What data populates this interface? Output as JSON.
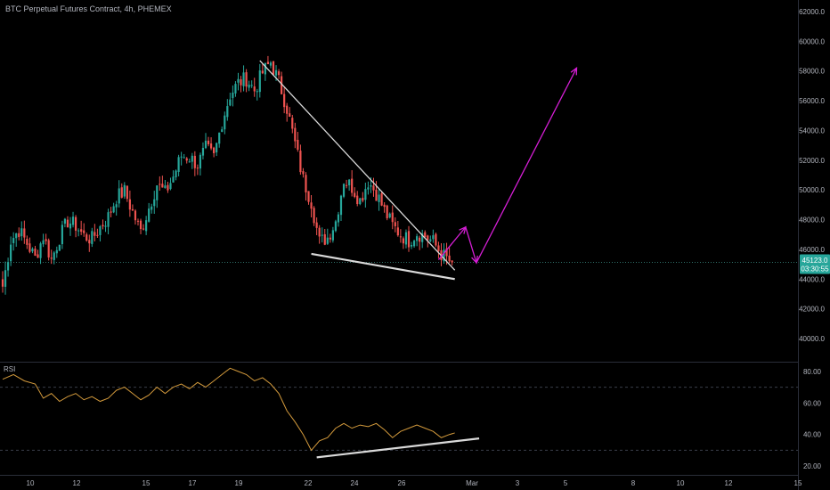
{
  "header": {
    "title": "BTC Perpetual Futures Contract, 4h, PHEMEX"
  },
  "colors": {
    "background": "#000000",
    "up": "#26a69a",
    "down": "#ef5350",
    "trendline": "#d9d9d9",
    "projection": "#d41ed4",
    "rsi_line": "#d39a3c",
    "price_badge": "#26a69a"
  },
  "price_badge": {
    "price": "45123.0",
    "countdown": "03:30:55"
  },
  "chart_data": [
    {
      "type": "candlestick",
      "title": "BTC Perpetual Futures Contract, 4h, PHEMEX",
      "ylim": [
        38500,
        62300
      ],
      "y_ticks": [
        {
          "value": 40000,
          "label": "40000.0"
        },
        {
          "value": 42000,
          "label": "42000.0"
        },
        {
          "value": 44000,
          "label": "44000.0"
        },
        {
          "value": 46000,
          "label": "46000.0"
        },
        {
          "value": 48000,
          "label": "48000.0"
        },
        {
          "value": 50000,
          "label": "50000.0"
        },
        {
          "value": 52000,
          "label": "52000.0"
        },
        {
          "value": 54000,
          "label": "54000.0"
        },
        {
          "value": 56000,
          "label": "56000.0"
        },
        {
          "value": 58000,
          "label": "58000.0"
        },
        {
          "value": 60000,
          "label": "60000.0"
        },
        {
          "value": 62000,
          "label": "62000.0"
        }
      ],
      "x_ticks": [
        "10",
        "12",
        "15",
        "17",
        "19",
        "22",
        "24",
        "26",
        "Mar",
        "3",
        "5",
        "8",
        "10",
        "12",
        "15"
      ],
      "current_price": 45123.0,
      "close_path": [
        [
          0,
          43500
        ],
        [
          3,
          46600
        ],
        [
          6,
          47300
        ],
        [
          9,
          46400
        ],
        [
          12,
          45400
        ],
        [
          15,
          46900
        ],
        [
          18,
          45300
        ],
        [
          21,
          46800
        ],
        [
          24,
          47900
        ],
        [
          27,
          47600
        ],
        [
          30,
          46900
        ],
        [
          33,
          46700
        ],
        [
          36,
          47500
        ],
        [
          39,
          48200
        ],
        [
          42,
          49500
        ],
        [
          45,
          49900
        ],
        [
          48,
          48500
        ],
        [
          51,
          47200
        ],
        [
          54,
          48800
        ],
        [
          57,
          50400
        ],
        [
          60,
          49800
        ],
        [
          63,
          50900
        ],
        [
          66,
          52300
        ],
        [
          69,
          52200
        ],
        [
          72,
          51700
        ],
        [
          75,
          52800
        ],
        [
          78,
          52200
        ],
        [
          81,
          54600
        ],
        [
          84,
          56400
        ],
        [
          87,
          57200
        ],
        [
          90,
          57500
        ],
        [
          93,
          56700
        ],
        [
          96,
          57900
        ],
        [
          99,
          58600
        ],
        [
          102,
          57300
        ],
        [
          105,
          55500
        ],
        [
          108,
          53100
        ],
        [
          111,
          50700
        ],
        [
          114,
          49200
        ],
        [
          117,
          46500
        ],
        [
          120,
          46800
        ],
        [
          123,
          47900
        ],
        [
          126,
          50700
        ],
        [
          129,
          50200
        ],
        [
          132,
          49300
        ],
        [
          135,
          50600
        ],
        [
          138,
          49800
        ],
        [
          141,
          48600
        ],
        [
          144,
          47600
        ],
        [
          147,
          47000
        ],
        [
          150,
          46600
        ],
        [
          153,
          47100
        ],
        [
          156,
          46900
        ],
        [
          159,
          46500
        ],
        [
          162,
          45700
        ],
        [
          165,
          45200
        ],
        [
          166,
          45123
        ]
      ],
      "annotations": {
        "descending_line": [
          [
            95,
            58700
          ],
          [
            167,
            44600
          ]
        ],
        "support_line": [
          [
            114,
            45700
          ],
          [
            167,
            44000
          ]
        ],
        "projection_path": [
          [
            161,
            45300
          ],
          [
            171,
            47500
          ],
          [
            175,
            45100
          ],
          [
            212,
            58200
          ]
        ]
      }
    },
    {
      "type": "line",
      "name": "RSI",
      "ylim": [
        15,
        85
      ],
      "y_ticks": [
        {
          "value": 20,
          "label": "20.00"
        },
        {
          "value": 40,
          "label": "40.00"
        },
        {
          "value": 60,
          "label": "60.00"
        },
        {
          "value": 80,
          "label": "80.00"
        }
      ],
      "bands": [
        30,
        70
      ],
      "points": [
        [
          0,
          75
        ],
        [
          4,
          78
        ],
        [
          8,
          74
        ],
        [
          12,
          72
        ],
        [
          15,
          63
        ],
        [
          18,
          66
        ],
        [
          21,
          61
        ],
        [
          24,
          64
        ],
        [
          27,
          66
        ],
        [
          30,
          62
        ],
        [
          33,
          64
        ],
        [
          36,
          61
        ],
        [
          39,
          63
        ],
        [
          42,
          68
        ],
        [
          45,
          70
        ],
        [
          48,
          66
        ],
        [
          51,
          62
        ],
        [
          54,
          65
        ],
        [
          57,
          70
        ],
        [
          60,
          66
        ],
        [
          63,
          70
        ],
        [
          66,
          72
        ],
        [
          69,
          69
        ],
        [
          72,
          73
        ],
        [
          75,
          70
        ],
        [
          78,
          74
        ],
        [
          81,
          78
        ],
        [
          84,
          82
        ],
        [
          87,
          80
        ],
        [
          90,
          78
        ],
        [
          93,
          74
        ],
        [
          96,
          76
        ],
        [
          99,
          72
        ],
        [
          102,
          66
        ],
        [
          105,
          55
        ],
        [
          108,
          48
        ],
        [
          111,
          40
        ],
        [
          114,
          30
        ],
        [
          117,
          36
        ],
        [
          120,
          38
        ],
        [
          123,
          44
        ],
        [
          126,
          47
        ],
        [
          129,
          44
        ],
        [
          132,
          46
        ],
        [
          135,
          45
        ],
        [
          138,
          47
        ],
        [
          141,
          43
        ],
        [
          144,
          38
        ],
        [
          147,
          42
        ],
        [
          150,
          44
        ],
        [
          153,
          46
        ],
        [
          156,
          44
        ],
        [
          159,
          42
        ],
        [
          162,
          38
        ],
        [
          165,
          40
        ],
        [
          167,
          41
        ]
      ],
      "annotations": {
        "trendline": [
          [
            116,
            25.5
          ],
          [
            176,
            37.5
          ]
        ]
      }
    }
  ]
}
